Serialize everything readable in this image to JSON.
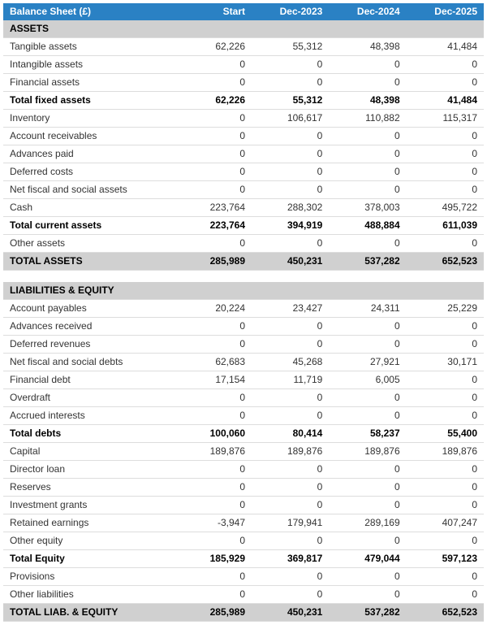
{
  "header": {
    "title": "Balance Sheet (£)",
    "columns": [
      "Start",
      "Dec-2023",
      "Dec-2024",
      "Dec-2025"
    ]
  },
  "rows": [
    {
      "type": "section",
      "label": "ASSETS"
    },
    {
      "type": "normal",
      "label": "Tangible assets",
      "v": [
        "62,226",
        "55,312",
        "48,398",
        "41,484"
      ]
    },
    {
      "type": "normal",
      "label": "Intangible assets",
      "v": [
        "0",
        "0",
        "0",
        "0"
      ]
    },
    {
      "type": "normal",
      "label": "Financial assets",
      "v": [
        "0",
        "0",
        "0",
        "0"
      ]
    },
    {
      "type": "bold",
      "label": "Total fixed assets",
      "v": [
        "62,226",
        "55,312",
        "48,398",
        "41,484"
      ]
    },
    {
      "type": "normal",
      "label": "Inventory",
      "v": [
        "0",
        "106,617",
        "110,882",
        "115,317"
      ]
    },
    {
      "type": "normal",
      "label": "Account receivables",
      "v": [
        "0",
        "0",
        "0",
        "0"
      ]
    },
    {
      "type": "normal",
      "label": "Advances paid",
      "v": [
        "0",
        "0",
        "0",
        "0"
      ]
    },
    {
      "type": "normal",
      "label": "Deferred costs",
      "v": [
        "0",
        "0",
        "0",
        "0"
      ]
    },
    {
      "type": "normal",
      "label": "Net fiscal and social assets",
      "v": [
        "0",
        "0",
        "0",
        "0"
      ]
    },
    {
      "type": "normal",
      "label": "Cash",
      "v": [
        "223,764",
        "288,302",
        "378,003",
        "495,722"
      ]
    },
    {
      "type": "bold",
      "label": "Total current assets",
      "v": [
        "223,764",
        "394,919",
        "488,884",
        "611,039"
      ]
    },
    {
      "type": "normal",
      "label": "Other assets",
      "v": [
        "0",
        "0",
        "0",
        "0"
      ]
    },
    {
      "type": "totalcaps",
      "label": "TOTAL ASSETS",
      "v": [
        "285,989",
        "450,231",
        "537,282",
        "652,523"
      ]
    },
    {
      "type": "spacer"
    },
    {
      "type": "section",
      "label": "LIABILITIES & EQUITY"
    },
    {
      "type": "normal",
      "label": "Account payables",
      "v": [
        "20,224",
        "23,427",
        "24,311",
        "25,229"
      ]
    },
    {
      "type": "normal",
      "label": "Advances received",
      "v": [
        "0",
        "0",
        "0",
        "0"
      ]
    },
    {
      "type": "normal",
      "label": "Deferred revenues",
      "v": [
        "0",
        "0",
        "0",
        "0"
      ]
    },
    {
      "type": "normal",
      "label": "Net fiscal and social debts",
      "v": [
        "62,683",
        "45,268",
        "27,921",
        "30,171"
      ]
    },
    {
      "type": "normal",
      "label": "Financial debt",
      "v": [
        "17,154",
        "11,719",
        "6,005",
        "0"
      ]
    },
    {
      "type": "normal",
      "label": "Overdraft",
      "v": [
        "0",
        "0",
        "0",
        "0"
      ]
    },
    {
      "type": "normal",
      "label": "Accrued interests",
      "v": [
        "0",
        "0",
        "0",
        "0"
      ]
    },
    {
      "type": "bold",
      "label": "Total debts",
      "v": [
        "100,060",
        "80,414",
        "58,237",
        "55,400"
      ]
    },
    {
      "type": "normal",
      "label": "Capital",
      "v": [
        "189,876",
        "189,876",
        "189,876",
        "189,876"
      ]
    },
    {
      "type": "normal",
      "label": "Director loan",
      "v": [
        "0",
        "0",
        "0",
        "0"
      ]
    },
    {
      "type": "normal",
      "label": "Reserves",
      "v": [
        "0",
        "0",
        "0",
        "0"
      ]
    },
    {
      "type": "normal",
      "label": "Investment grants",
      "v": [
        "0",
        "0",
        "0",
        "0"
      ]
    },
    {
      "type": "normal",
      "label": "Retained earnings",
      "v": [
        "-3,947",
        "179,941",
        "289,169",
        "407,247"
      ]
    },
    {
      "type": "normal",
      "label": "Other equity",
      "v": [
        "0",
        "0",
        "0",
        "0"
      ]
    },
    {
      "type": "bold",
      "label": "Total Equity",
      "v": [
        "185,929",
        "369,817",
        "479,044",
        "597,123"
      ]
    },
    {
      "type": "normal",
      "label": "Provisions",
      "v": [
        "0",
        "0",
        "0",
        "0"
      ]
    },
    {
      "type": "normal",
      "label": "Other liabilities",
      "v": [
        "0",
        "0",
        "0",
        "0"
      ]
    },
    {
      "type": "totalcaps",
      "label": "TOTAL LIAB. & EQUITY",
      "v": [
        "285,989",
        "450,231",
        "537,282",
        "652,523"
      ]
    }
  ],
  "styles": {
    "header_bg": "#2a81c4",
    "header_text": "#ffffff",
    "section_bg": "#d0d0d0",
    "row_border": "#dddddd",
    "font_size": 12
  }
}
